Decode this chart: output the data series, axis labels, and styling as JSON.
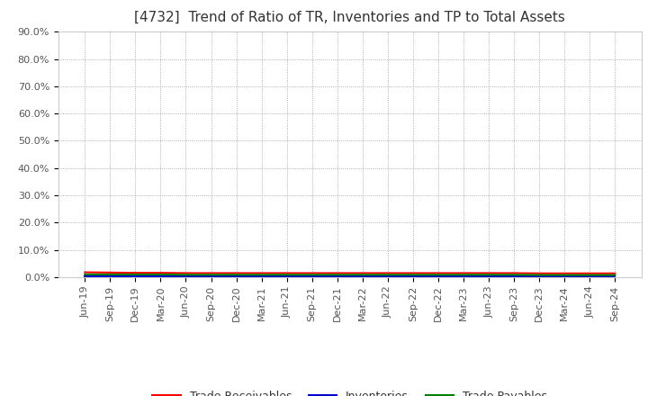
{
  "title": "[4732]  Trend of Ratio of TR, Inventories and TP to Total Assets",
  "x_labels": [
    "Jun-19",
    "Sep-19",
    "Dec-19",
    "Mar-20",
    "Jun-20",
    "Sep-20",
    "Dec-20",
    "Mar-21",
    "Jun-21",
    "Sep-21",
    "Dec-21",
    "Mar-22",
    "Jun-22",
    "Sep-22",
    "Dec-22",
    "Mar-23",
    "Jun-23",
    "Sep-23",
    "Dec-23",
    "Mar-24",
    "Jun-24",
    "Sep-24"
  ],
  "trade_receivables": [
    0.018,
    0.017,
    0.016,
    0.016,
    0.015,
    0.015,
    0.015,
    0.015,
    0.015,
    0.015,
    0.015,
    0.015,
    0.015,
    0.015,
    0.015,
    0.015,
    0.015,
    0.015,
    0.014,
    0.014,
    0.014,
    0.014
  ],
  "inventories": [
    0.002,
    0.002,
    0.002,
    0.002,
    0.002,
    0.002,
    0.002,
    0.002,
    0.002,
    0.002,
    0.002,
    0.002,
    0.002,
    0.002,
    0.002,
    0.002,
    0.002,
    0.002,
    0.002,
    0.002,
    0.002,
    0.002
  ],
  "trade_payables": [
    0.01,
    0.01,
    0.01,
    0.01,
    0.009,
    0.009,
    0.009,
    0.009,
    0.009,
    0.009,
    0.009,
    0.009,
    0.009,
    0.009,
    0.009,
    0.009,
    0.009,
    0.009,
    0.008,
    0.008,
    0.008,
    0.008
  ],
  "tr_color": "#ff0000",
  "inv_color": "#0000cc",
  "tp_color": "#008000",
  "ylim": [
    0.0,
    0.9
  ],
  "yticks": [
    0.0,
    0.1,
    0.2,
    0.3,
    0.4,
    0.5,
    0.6,
    0.7,
    0.8,
    0.9
  ],
  "ytick_labels": [
    "0.0%",
    "10.0%",
    "20.0%",
    "30.0%",
    "40.0%",
    "50.0%",
    "60.0%",
    "70.0%",
    "80.0%",
    "90.0%"
  ],
  "background_color": "#ffffff",
  "grid_color": "#999999",
  "legend_labels": [
    "Trade Receivables",
    "Inventories",
    "Trade Payables"
  ],
  "title_fontsize": 11,
  "tick_fontsize": 8,
  "legend_fontsize": 9
}
